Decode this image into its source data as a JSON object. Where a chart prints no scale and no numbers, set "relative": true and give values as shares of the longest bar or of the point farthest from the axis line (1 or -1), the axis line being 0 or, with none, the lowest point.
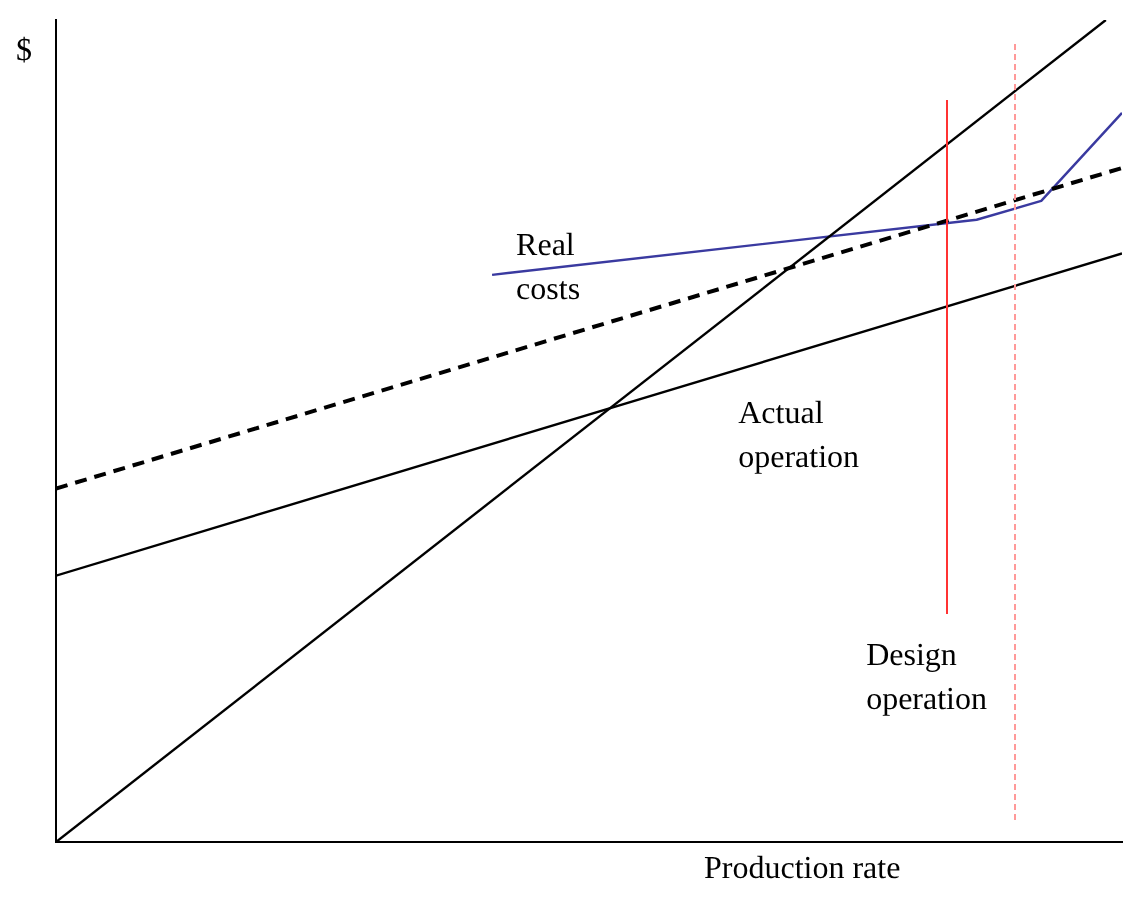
{
  "chart_data": {
    "type": "line",
    "relative": true,
    "ylabel": "$",
    "xlabel": "Production rate",
    "tick_labels": false,
    "grid": false,
    "legend": false,
    "marker": "none",
    "categories": [
      null,
      null,
      null,
      null,
      null,
      null,
      null,
      null,
      null,
      null,
      null,
      null,
      null,
      null,
      null,
      null,
      null,
      null,
      null,
      null,
      null,
      null,
      null,
      null,
      null,
      null,
      null,
      null,
      null,
      null,
      null,
      null,
      null,
      null,
      null,
      null,
      null,
      null,
      null,
      null,
      null,
      null,
      null,
      null,
      null,
      null,
      null,
      null,
      null,
      null,
      null,
      null,
      null,
      null,
      null,
      null,
      null,
      null,
      null,
      null,
      null,
      null,
      null,
      null,
      null,
      null,
      null
    ],
    "series": [
      {
        "color": "#000000",
        "values": [
          0,
          null,
          null,
          null,
          null,
          null,
          null,
          null,
          null,
          null,
          null,
          null,
          null,
          null,
          null,
          null,
          null,
          null,
          null,
          null,
          null,
          null,
          null,
          null,
          null,
          null,
          null,
          null,
          null,
          null,
          null,
          null,
          null,
          null,
          null,
          null,
          null,
          null,
          null,
          null,
          null,
          null,
          null,
          null,
          null,
          null,
          null,
          null,
          null,
          null,
          null,
          null,
          null,
          null,
          null,
          null,
          null,
          null,
          null,
          null,
          null,
          null,
          null,
          null,
          null,
          1.0,
          null
        ]
      },
      {
        "color": "#000000",
        "values": [
          0.324,
          null,
          null,
          null,
          null,
          null,
          null,
          null,
          null,
          null,
          null,
          null,
          null,
          null,
          null,
          null,
          null,
          null,
          null,
          null,
          null,
          null,
          null,
          null,
          null,
          null,
          null,
          null,
          null,
          null,
          null,
          null,
          null,
          null,
          null,
          null,
          null,
          null,
          null,
          null,
          null,
          null,
          null,
          null,
          null,
          null,
          null,
          null,
          null,
          null,
          null,
          null,
          null,
          null,
          null,
          null,
          null,
          null,
          null,
          null,
          null,
          null,
          null,
          null,
          null,
          null,
          0.716
        ]
      },
      {
        "color": "#000000",
        "line_style": "dashed",
        "values": [
          0.43,
          null,
          null,
          null,
          null,
          null,
          null,
          null,
          null,
          null,
          null,
          null,
          null,
          null,
          null,
          null,
          null,
          null,
          null,
          null,
          null,
          null,
          null,
          null,
          null,
          null,
          null,
          null,
          null,
          null,
          null,
          null,
          null,
          null,
          null,
          null,
          null,
          null,
          null,
          null,
          null,
          null,
          null,
          null,
          null,
          null,
          null,
          null,
          null,
          null,
          null,
          null,
          null,
          null,
          null,
          null,
          null,
          null,
          null,
          null,
          null,
          null,
          null,
          null,
          null,
          null,
          0.82
        ]
      },
      {
        "name": "Real costs",
        "color": "#3a3aa0",
        "values": [
          null,
          null,
          null,
          null,
          null,
          null,
          null,
          null,
          null,
          null,
          null,
          null,
          null,
          null,
          null,
          null,
          null,
          null,
          null,
          null,
          null,
          null,
          null,
          null,
          null,
          null,
          null,
          0.69,
          null,
          null,
          null,
          null,
          null,
          null,
          null,
          null,
          null,
          null,
          null,
          null,
          null,
          null,
          null,
          null,
          null,
          null,
          null,
          null,
          null,
          null,
          null,
          null,
          null,
          null,
          null,
          null,
          null,
          0.757,
          null,
          null,
          null,
          0.78,
          null,
          null,
          null,
          null,
          0.887
        ]
      }
    ],
    "annotations": [
      "Actual operation",
      "Design operation"
    ]
  }
}
